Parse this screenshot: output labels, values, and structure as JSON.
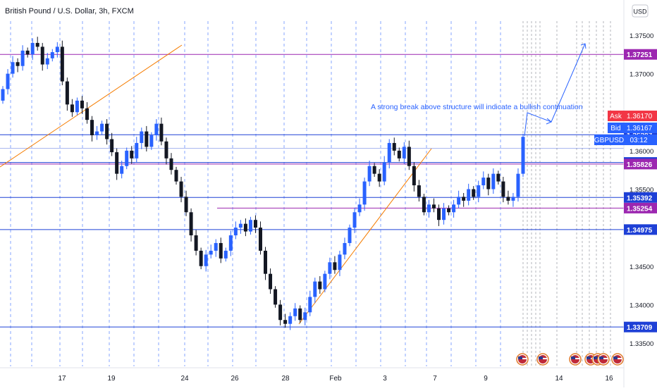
{
  "header": {
    "title": "British Pound / U.S. Dollar, 3h, FXCM",
    "currency_button": "USD"
  },
  "colors": {
    "up": "#2962ff",
    "down": "#131722",
    "blue_line": "#1e40d6",
    "purple_line": "#9c27b0",
    "orange_line": "#f57c00",
    "annotation": "#2962ff",
    "ask": "#f23645",
    "grid_dash": "#2962ff"
  },
  "annotation": {
    "text": "A strong break above structure will indicate a bullish continuation"
  },
  "price_tags": {
    "ask_label": "Ask",
    "ask_value": "1.36170",
    "bid_label": "Bid",
    "bid_value": "1.36167",
    "symbol": "GBPUSD",
    "countdown": "03:12"
  },
  "chart_data": {
    "type": "candlestick",
    "title": "British Pound / U.S. Dollar, 3h, FXCM",
    "symbol": "GBPUSD",
    "timeframe": "3h",
    "y_axis_ticks": [
      "1.37500",
      "1.37000",
      "1.36500",
      "1.36000",
      "1.35500",
      "1.35000",
      "1.34500",
      "1.34000",
      "1.33500"
    ],
    "x_axis_ticks": [
      "17",
      "19",
      "24",
      "26",
      "28",
      "Feb",
      "3",
      "7",
      "9",
      "14",
      "16"
    ],
    "ylim": [
      1.333,
      1.3795
    ],
    "levels": [
      {
        "value": 1.37251,
        "label": "1.37251",
        "color": "purple"
      },
      {
        "value": 1.36207,
        "label": "1.36207",
        "color": "blue"
      },
      {
        "value": 1.35847,
        "label": "1.35847",
        "color": "blue"
      },
      {
        "value": 1.35826,
        "label": "1.35826",
        "color": "purple"
      },
      {
        "value": 1.35392,
        "label": "1.35392",
        "color": "blue"
      },
      {
        "value": 1.35254,
        "label": "1.35254",
        "color": "purple"
      },
      {
        "value": 1.34975,
        "label": "1.34975",
        "color": "blue"
      },
      {
        "value": 1.33709,
        "label": "1.33709",
        "color": "blue"
      }
    ],
    "last_price": 1.3617,
    "closes": [
      1.368,
      1.37,
      1.3715,
      1.371,
      1.373,
      1.3725,
      1.374,
      1.3735,
      1.3712,
      1.372,
      1.3728,
      1.3735,
      1.369,
      1.366,
      1.365,
      1.3665,
      1.3655,
      1.364,
      1.362,
      1.3625,
      1.3635,
      1.3615,
      1.3598,
      1.357,
      1.358,
      1.36,
      1.359,
      1.361,
      1.3625,
      1.3605,
      1.362,
      1.3635,
      1.3612,
      1.359,
      1.3575,
      1.356,
      1.354,
      1.352,
      1.349,
      1.347,
      1.345,
      1.3465,
      1.347,
      1.348,
      1.346,
      1.347,
      1.349,
      1.35,
      1.3505,
      1.3495,
      1.351,
      1.35,
      1.347,
      1.344,
      1.342,
      1.34,
      1.338,
      1.3375,
      1.3385,
      1.3395,
      1.338,
      1.339,
      1.341,
      1.343,
      1.342,
      1.344,
      1.3455,
      1.3445,
      1.3465,
      1.348,
      1.35,
      1.352,
      1.353,
      1.356,
      1.358,
      1.357,
      1.356,
      1.3585,
      1.361,
      1.36,
      1.359,
      1.3605,
      1.358,
      1.3555,
      1.354,
      1.352,
      1.353,
      1.3525,
      1.351,
      1.3525,
      1.352,
      1.353,
      1.354,
      1.3535,
      1.355,
      1.354,
      1.3555,
      1.3565,
      1.355,
      1.357,
      1.356,
      1.354,
      1.3535,
      1.354,
      1.357,
      1.3618
    ]
  }
}
